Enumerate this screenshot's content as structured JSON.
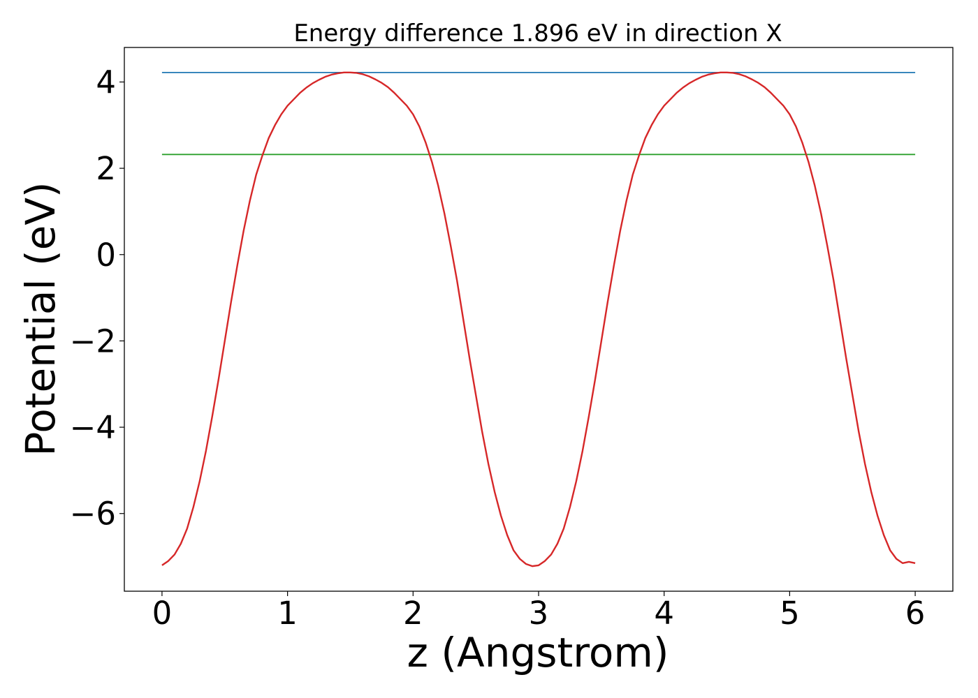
{
  "chart_data": {
    "type": "line",
    "title": "Energy difference 1.896 eV in direction X",
    "xlabel": "z (Angstrom)",
    "ylabel": "Potential (eV)",
    "xlim": [
      -0.3,
      6.3
    ],
    "ylim": [
      -7.8,
      4.8
    ],
    "x_ticks": [
      0,
      1,
      2,
      3,
      4,
      5,
      6
    ],
    "x_tick_labels": [
      "0",
      "1",
      "2",
      "3",
      "4",
      "5",
      "6"
    ],
    "y_ticks": [
      -6,
      -4,
      -2,
      0,
      2,
      4
    ],
    "y_tick_labels": [
      "−6",
      "−4",
      "−2",
      "0",
      "2",
      "4"
    ],
    "grid": false,
    "series": [
      {
        "color": "#1f77b4",
        "style": "horizontal",
        "x": [
          0,
          6
        ],
        "y": [
          4.22,
          4.22
        ]
      },
      {
        "color": "#2ca02c",
        "style": "horizontal",
        "x": [
          0,
          6
        ],
        "y": [
          2.32,
          2.32
        ]
      },
      {
        "color": "#d62728",
        "style": "line",
        "x": [
          0,
          0.05,
          0.1,
          0.15,
          0.2,
          0.25,
          0.3,
          0.35,
          0.4,
          0.45,
          0.5,
          0.55,
          0.6,
          0.65,
          0.7,
          0.75,
          0.8,
          0.85,
          0.9,
          0.95,
          1.0,
          1.05,
          1.1,
          1.15,
          1.2,
          1.25,
          1.3,
          1.35,
          1.4,
          1.45,
          1.5,
          1.55,
          1.6,
          1.65,
          1.7,
          1.75,
          1.8,
          1.85,
          1.9,
          1.95,
          2.0,
          2.05,
          2.1,
          2.15,
          2.2,
          2.25,
          2.3,
          2.35,
          2.4,
          2.45,
          2.5,
          2.55,
          2.6,
          2.65,
          2.7,
          2.75,
          2.8,
          2.85,
          2.9,
          2.95,
          3.0,
          3.05,
          3.1,
          3.15,
          3.2,
          3.25,
          3.3,
          3.35,
          3.4,
          3.45,
          3.5,
          3.55,
          3.6,
          3.65,
          3.7,
          3.75,
          3.8,
          3.85,
          3.9,
          3.95,
          4.0,
          4.05,
          4.1,
          4.15,
          4.2,
          4.25,
          4.3,
          4.35,
          4.4,
          4.45,
          4.5,
          4.55,
          4.6,
          4.65,
          4.7,
          4.75,
          4.8,
          4.85,
          4.9,
          4.95,
          5.0,
          5.05,
          5.1,
          5.15,
          5.2,
          5.25,
          5.3,
          5.35,
          5.4,
          5.45,
          5.5,
          5.55,
          5.6,
          5.65,
          5.7,
          5.75,
          5.8,
          5.85,
          5.9,
          5.95,
          6.0
        ],
        "y": [
          -7.2,
          -7.1,
          -6.95,
          -6.7,
          -6.35,
          -5.85,
          -5.25,
          -4.55,
          -3.75,
          -2.9,
          -2.0,
          -1.1,
          -0.25,
          0.55,
          1.25,
          1.85,
          2.3,
          2.7,
          3.0,
          3.25,
          3.45,
          3.6,
          3.75,
          3.87,
          3.97,
          4.05,
          4.12,
          4.17,
          4.2,
          4.22,
          4.22,
          4.21,
          4.18,
          4.13,
          4.06,
          3.98,
          3.88,
          3.75,
          3.6,
          3.45,
          3.25,
          2.97,
          2.6,
          2.15,
          1.6,
          0.95,
          0.2,
          -0.6,
          -1.5,
          -2.4,
          -3.25,
          -4.1,
          -4.85,
          -5.5,
          -6.05,
          -6.5,
          -6.85,
          -7.05,
          -7.17,
          -7.22,
          -7.2,
          -7.1,
          -6.95,
          -6.7,
          -6.35,
          -5.85,
          -5.25,
          -4.55,
          -3.75,
          -2.9,
          -2.0,
          -1.1,
          -0.25,
          0.55,
          1.25,
          1.85,
          2.3,
          2.7,
          3.0,
          3.25,
          3.45,
          3.6,
          3.75,
          3.87,
          3.97,
          4.05,
          4.12,
          4.17,
          4.2,
          4.22,
          4.22,
          4.21,
          4.18,
          4.13,
          4.06,
          3.98,
          3.88,
          3.75,
          3.6,
          3.45,
          3.25,
          2.97,
          2.6,
          2.15,
          1.6,
          0.95,
          0.2,
          -0.6,
          -1.5,
          -2.4,
          -3.25,
          -4.1,
          -4.85,
          -5.5,
          -6.05,
          -6.5,
          -6.85,
          -7.05,
          -7.15,
          -7.12,
          -7.15
        ]
      }
    ]
  }
}
